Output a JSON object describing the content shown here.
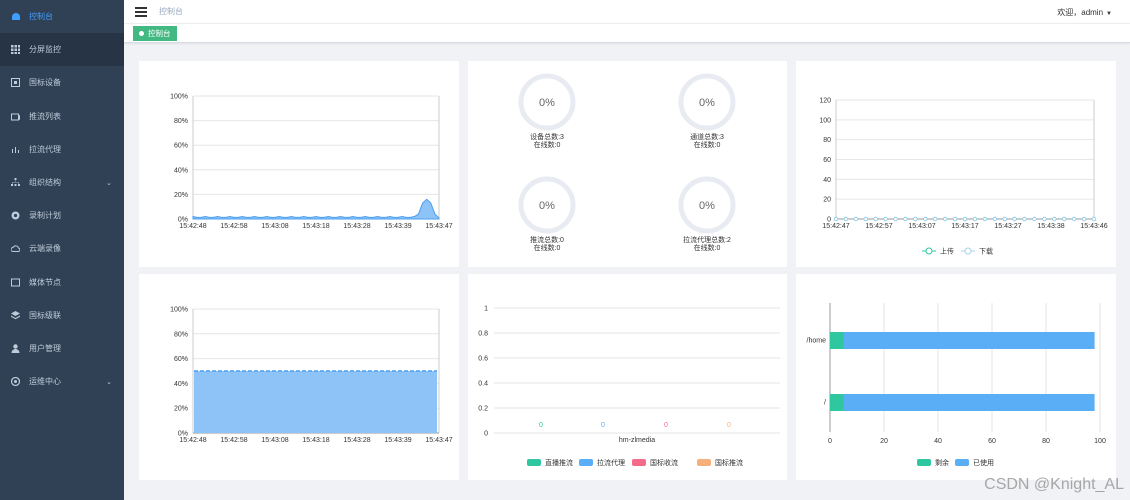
{
  "sidebar": {
    "items": [
      {
        "label": "控制台",
        "icon": "dashboard-icon",
        "active": true
      },
      {
        "label": "分屏监控",
        "icon": "grid-icon"
      },
      {
        "label": "国标设备",
        "icon": "device-icon"
      },
      {
        "label": "推流列表",
        "icon": "push-icon"
      },
      {
        "label": "拉流代理",
        "icon": "proxy-icon"
      },
      {
        "label": "组织结构",
        "icon": "tree-icon",
        "expandable": true
      },
      {
        "label": "录制计划",
        "icon": "gear-icon"
      },
      {
        "label": "云端录像",
        "icon": "cloud-icon"
      },
      {
        "label": "媒体节点",
        "icon": "server-icon"
      },
      {
        "label": "国标级联",
        "icon": "stack-icon"
      },
      {
        "label": "用户管理",
        "icon": "user-icon"
      },
      {
        "label": "运维中心",
        "icon": "settings-icon",
        "expandable": true
      }
    ]
  },
  "header": {
    "breadcrumb": "控制台",
    "welcome": "欢迎，admin"
  },
  "tags": {
    "active": "控制台"
  },
  "cpu_chart": {
    "ylabels": [
      "100%",
      "80%",
      "60%",
      "40%",
      "20%",
      "0%"
    ],
    "xlabels": [
      "15:42:48",
      "15:42:58",
      "15:43:08",
      "15:43:18",
      "15:43:28",
      "15:43:39",
      "15:43:47"
    ]
  },
  "rings": [
    {
      "pct": "0%",
      "line1": "设备总数:3",
      "line2": "在线数:0"
    },
    {
      "pct": "0%",
      "line1": "通道总数:3",
      "line2": "在线数:0"
    },
    {
      "pct": "0%",
      "line1": "推流总数:0",
      "line2": "在线数:0"
    },
    {
      "pct": "0%",
      "line1": "拉流代理总数:2",
      "line2": "在线数:0"
    }
  ],
  "net_chart": {
    "ylabels": [
      "120",
      "100",
      "80",
      "60",
      "40",
      "20",
      "0"
    ],
    "xlabels": [
      "15:42:47",
      "15:42:57",
      "15:43:07",
      "15:43:17",
      "15:43:27",
      "15:43:38",
      "15:43:46"
    ],
    "legend": [
      "上传",
      "下载"
    ]
  },
  "mem_chart": {
    "ylabels": [
      "100%",
      "80%",
      "60%",
      "40%",
      "20%",
      "0%"
    ],
    "xlabels": [
      "15:42:48",
      "15:42:58",
      "15:43:08",
      "15:43:18",
      "15:43:28",
      "15:43:39",
      "15:43:47"
    ]
  },
  "stream_chart": {
    "ylabels": [
      "1",
      "0.8",
      "0.6",
      "0.4",
      "0.2",
      "0"
    ],
    "category": "hm-zlmedia",
    "values": [
      "0",
      "0",
      "0",
      "0"
    ],
    "legend": [
      "直播推流",
      "拉流代理",
      "国标收流",
      "国标推流"
    ]
  },
  "disk_chart": {
    "categories": [
      "/home",
      "/"
    ],
    "xlabels": [
      "0",
      "20",
      "40",
      "60",
      "80",
      "100"
    ],
    "legend": [
      "剩余",
      "已使用"
    ]
  },
  "watermark": "CSDN @Knight_AL",
  "chart_data": [
    {
      "type": "area",
      "title": "",
      "x": [
        "15:42:48",
        "15:42:58",
        "15:43:08",
        "15:43:18",
        "15:43:28",
        "15:43:39",
        "15:43:47"
      ],
      "ylim": [
        0,
        100
      ],
      "series": [
        {
          "values": [
            1,
            1,
            2,
            1,
            1,
            1,
            16
          ]
        }
      ]
    },
    {
      "type": "line",
      "x": [
        "15:42:47",
        "15:42:57",
        "15:43:07",
        "15:43:17",
        "15:43:27",
        "15:43:38",
        "15:43:46"
      ],
      "ylim": [
        0,
        120
      ],
      "series": [
        {
          "name": "上传",
          "values": [
            0,
            0,
            0,
            0,
            0,
            0,
            0
          ]
        },
        {
          "name": "下载",
          "values": [
            0,
            0,
            0,
            0,
            0,
            0,
            0
          ]
        }
      ]
    },
    {
      "type": "area",
      "x": [
        "15:42:48",
        "15:42:58",
        "15:43:08",
        "15:43:18",
        "15:43:28",
        "15:43:39",
        "15:43:47"
      ],
      "ylim": [
        0,
        100
      ],
      "series": [
        {
          "values": [
            50,
            50,
            50,
            50,
            50,
            50,
            50
          ]
        }
      ]
    },
    {
      "type": "bar",
      "categories": [
        "hm-zlmedia"
      ],
      "ylim": [
        0,
        1
      ],
      "series": [
        {
          "name": "直播推流",
          "values": [
            0
          ]
        },
        {
          "name": "拉流代理",
          "values": [
            0
          ]
        },
        {
          "name": "国标收流",
          "values": [
            0
          ]
        },
        {
          "name": "国标推流",
          "values": [
            0
          ]
        }
      ]
    },
    {
      "type": "bar",
      "orientation": "horizontal",
      "categories": [
        "/home",
        "/"
      ],
      "xlim": [
        0,
        100
      ],
      "series": [
        {
          "name": "剩余",
          "values": [
            5,
            5
          ]
        },
        {
          "name": "已使用",
          "values": [
            93,
            93
          ]
        }
      ]
    }
  ],
  "colors": {
    "sidebar": "#304156",
    "accent": "#409eff",
    "tag": "#42b983",
    "area": "#5aaef5",
    "green": "#2ec7a0",
    "blue": "#5aaef5",
    "red": "#f56c8a",
    "orange": "#f7b07a"
  }
}
